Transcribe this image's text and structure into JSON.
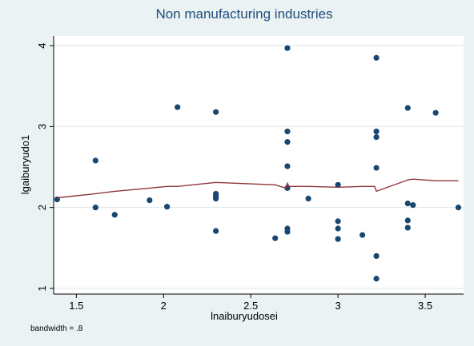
{
  "chart_data": {
    "type": "scatter",
    "title": "Non manufacturing industries",
    "xlabel": "lnaiburyudosei",
    "ylabel": "lgaiburyudo1",
    "note": "bandwidth = .8",
    "xlim": [
      1.37,
      3.72
    ],
    "ylim": [
      0.93,
      4.12
    ],
    "xticks": [
      1.5,
      2,
      2.5,
      3,
      3.5
    ],
    "yticks": [
      1,
      2,
      3,
      4
    ],
    "xtick_labels": [
      "1.5",
      "2",
      "2.5",
      "3",
      "3.5"
    ],
    "ytick_labels": [
      "1",
      "2",
      "3",
      "4"
    ],
    "grid": "horizontal",
    "colors": {
      "points": "#1a476f",
      "smooth_line": "#90353b",
      "background": "#eaf2f3",
      "plot_area": "#ffffff",
      "grid": "#dfe7ea",
      "title": "#1f4e79"
    },
    "points": [
      [
        1.39,
        2.1
      ],
      [
        1.61,
        2.58
      ],
      [
        1.61,
        2.0
      ],
      [
        1.72,
        1.91
      ],
      [
        1.92,
        2.09
      ],
      [
        2.02,
        2.01
      ],
      [
        2.08,
        3.24
      ],
      [
        2.3,
        3.18
      ],
      [
        2.3,
        2.17
      ],
      [
        2.3,
        2.15
      ],
      [
        2.3,
        2.13
      ],
      [
        2.3,
        2.11
      ],
      [
        2.3,
        1.71
      ],
      [
        2.64,
        1.62
      ],
      [
        2.71,
        3.97
      ],
      [
        2.71,
        2.94
      ],
      [
        2.71,
        2.81
      ],
      [
        2.71,
        2.51
      ],
      [
        2.71,
        2.24
      ],
      [
        2.71,
        1.74
      ],
      [
        2.71,
        1.7
      ],
      [
        2.83,
        2.11
      ],
      [
        3.0,
        2.28
      ],
      [
        3.0,
        1.83
      ],
      [
        3.0,
        1.74
      ],
      [
        3.0,
        1.61
      ],
      [
        3.14,
        1.66
      ],
      [
        3.22,
        3.85
      ],
      [
        3.22,
        2.94
      ],
      [
        3.22,
        2.87
      ],
      [
        3.22,
        2.49
      ],
      [
        3.22,
        1.4
      ],
      [
        3.22,
        1.12
      ],
      [
        3.4,
        3.23
      ],
      [
        3.4,
        2.05
      ],
      [
        3.4,
        1.84
      ],
      [
        3.4,
        1.75
      ],
      [
        3.43,
        2.03
      ],
      [
        3.56,
        3.17
      ],
      [
        3.69,
        2.0
      ]
    ],
    "smooth_line": [
      [
        1.39,
        2.12
      ],
      [
        1.61,
        2.17
      ],
      [
        1.72,
        2.2
      ],
      [
        1.92,
        2.24
      ],
      [
        2.02,
        2.26
      ],
      [
        2.08,
        2.26
      ],
      [
        2.3,
        2.31
      ],
      [
        2.64,
        2.28
      ],
      [
        2.7,
        2.24
      ],
      [
        2.71,
        2.3
      ],
      [
        2.72,
        2.26
      ],
      [
        2.83,
        2.26
      ],
      [
        3.0,
        2.25
      ],
      [
        3.14,
        2.26
      ],
      [
        3.21,
        2.26
      ],
      [
        3.22,
        2.2
      ],
      [
        3.4,
        2.34
      ],
      [
        3.43,
        2.35
      ],
      [
        3.56,
        2.33
      ],
      [
        3.69,
        2.33
      ]
    ]
  }
}
